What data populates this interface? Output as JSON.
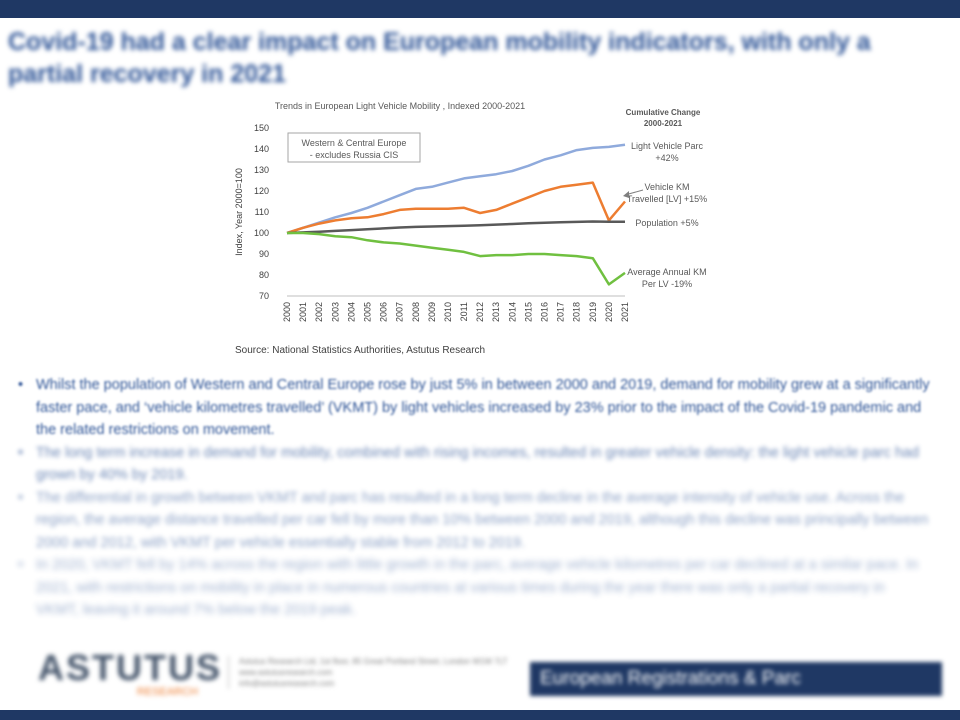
{
  "slide": {
    "title": "Covid-19 had a clear impact on European mobility indicators, with only a partial recovery in 2021",
    "source": "Source: National Statistics Authorities, Astutus Research",
    "bullets": [
      "Whilst the population of Western and Central Europe rose by just 5% in between 2000 and 2019, demand for mobility grew at a significantly faster pace, and ‘vehicle kilometres travelled’ (VKMT) by light vehicles increased by 23% prior to the impact of the Covid-19 pandemic and the related restrictions on movement.",
      "The long term increase in demand for mobility, combined with rising incomes, resulted in greater vehicle density: the light vehicle parc had grown by 40% by 2019.",
      "The differential in growth between VKMT and parc has resulted in a long term decline in the average intensity of vehicle use. Across the region, the average distance travelled per car fell by more than 10% between 2000 and 2019, although this decline was principally between 2000 and 2012, with VKMT per vehicle essentially stable from 2012 to 2019.",
      "In 2020, VKMT fell by 14% across the region with little growth in the parc, average vehicle kilometres per car declined at a similar pace. In 2021, with restrictions on mobility in place in numerous countries at various times during the year there was only a partial recovery in VKMT, leaving it around 7% below the 2019 peak."
    ],
    "footer": {
      "logo": "ASTUTUS",
      "logo_sub": "RESEARCH",
      "contact": [
        "Astutus Research Ltd, 1st floor, 85 Great Portland Street, London W1W 7LT",
        "www.astutusresearch.com",
        "info@astutusresearch.com"
      ],
      "banner": "European Registrations & Parc"
    }
  },
  "chart_data": {
    "type": "line",
    "title": "Trends in European Light Vehicle Mobility , Indexed 2000-2021",
    "ylabel": "Index, Year 2000=100",
    "xlabel": "",
    "ylim": [
      70,
      150
    ],
    "yticks": [
      70,
      80,
      90,
      100,
      110,
      120,
      130,
      140,
      150
    ],
    "grid": false,
    "annotation_box": [
      "Western & Central Europe",
      "- excludes Russia CIS"
    ],
    "cumulative_header": [
      "Cumulative Change",
      "2000-2021"
    ],
    "x": [
      "2000",
      "2001",
      "2002",
      "2003",
      "2004",
      "2005",
      "2006",
      "2007",
      "2008",
      "2009",
      "2010",
      "2011",
      "2012",
      "2013",
      "2014",
      "2015",
      "2016",
      "2017",
      "2018",
      "2019",
      "2020",
      "2021"
    ],
    "series": [
      {
        "name": "Light Vehicle Parc",
        "change": "+42%",
        "label_lines": [
          "Light Vehicle Parc",
          "+42%"
        ],
        "color": "#8faadc",
        "values": [
          100,
          102.5,
          105,
          107.5,
          109.5,
          112,
          115,
          118,
          121,
          122,
          124,
          126,
          127,
          128,
          129.5,
          132,
          135,
          137,
          139.5,
          140.5,
          141,
          142
        ]
      },
      {
        "name": "Vehicle KM Travelled [LV]",
        "change": "+15%",
        "label_lines": [
          "Vehicle KM",
          "Travelled [LV] +15%"
        ],
        "color": "#ed7d31",
        "values": [
          100,
          102.5,
          104.5,
          106,
          107,
          107.5,
          109,
          111,
          111.5,
          111.5,
          111.5,
          112,
          109.5,
          111,
          114,
          117,
          120,
          122,
          123,
          124,
          106,
          115
        ]
      },
      {
        "name": "Population",
        "change": "+5%",
        "label_lines": [
          "Population +5%"
        ],
        "color": "#595959",
        "values": [
          100,
          100.3,
          100.6,
          101,
          101.4,
          101.8,
          102.2,
          102.6,
          102.9,
          103.1,
          103.3,
          103.5,
          103.7,
          104,
          104.3,
          104.6,
          104.9,
          105.1,
          105.3,
          105.5,
          105.4,
          105.4
        ]
      },
      {
        "name": "Average Annual KM Per LV",
        "change": "-19%",
        "label_lines": [
          "Average Annual KM",
          "Per LV  -19%"
        ],
        "color": "#70c040",
        "values": [
          100,
          100,
          99.5,
          98.5,
          98,
          96.5,
          95.5,
          95,
          94,
          93,
          92,
          91,
          89,
          89.5,
          89.5,
          90,
          90,
          89.5,
          89,
          88,
          75.5,
          81
        ]
      }
    ]
  }
}
